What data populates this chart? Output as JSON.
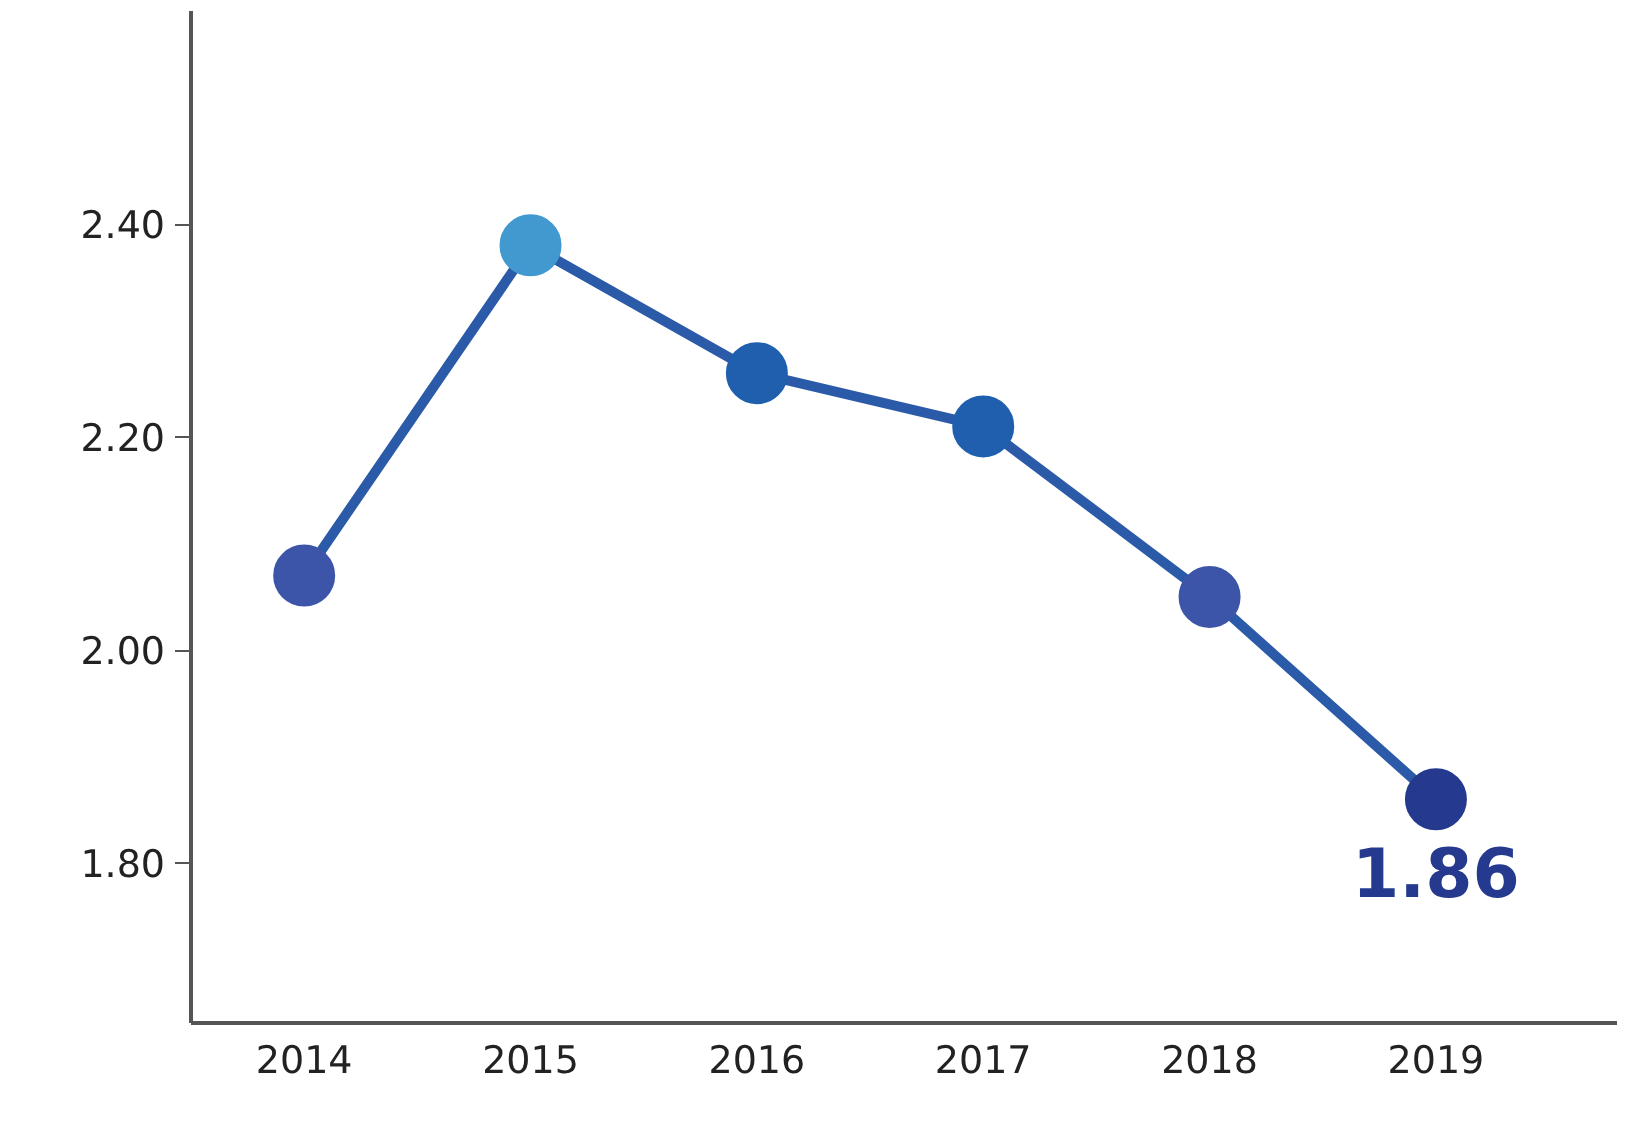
{
  "chart_data": {
    "type": "line",
    "categories": [
      "2014",
      "2015",
      "2016",
      "2017",
      "2018",
      "2019"
    ],
    "series": [
      {
        "color": "#2b5aa8",
        "colors": [
          "#3d55a8",
          "#4199d0",
          "#1f5fae",
          "#1f5fae",
          "#3d55a8",
          "#253a8e"
        ],
        "values": [
          2.07,
          2.38,
          2.26,
          2.21,
          2.05,
          1.86
        ],
        "value_labels": [
          null,
          null,
          null,
          null,
          null,
          "1.86"
        ]
      }
    ],
    "ylim": [
      1.65,
      2.6
    ],
    "yticks": [
      {
        "value": 1.8,
        "label": "1.80"
      },
      {
        "value": 2.0,
        "label": "2.00"
      },
      {
        "value": 2.2,
        "label": "2.20"
      },
      {
        "value": 2.4,
        "label": "2.40"
      }
    ],
    "grid": false,
    "marker": "circle",
    "line_style": "solid"
  }
}
